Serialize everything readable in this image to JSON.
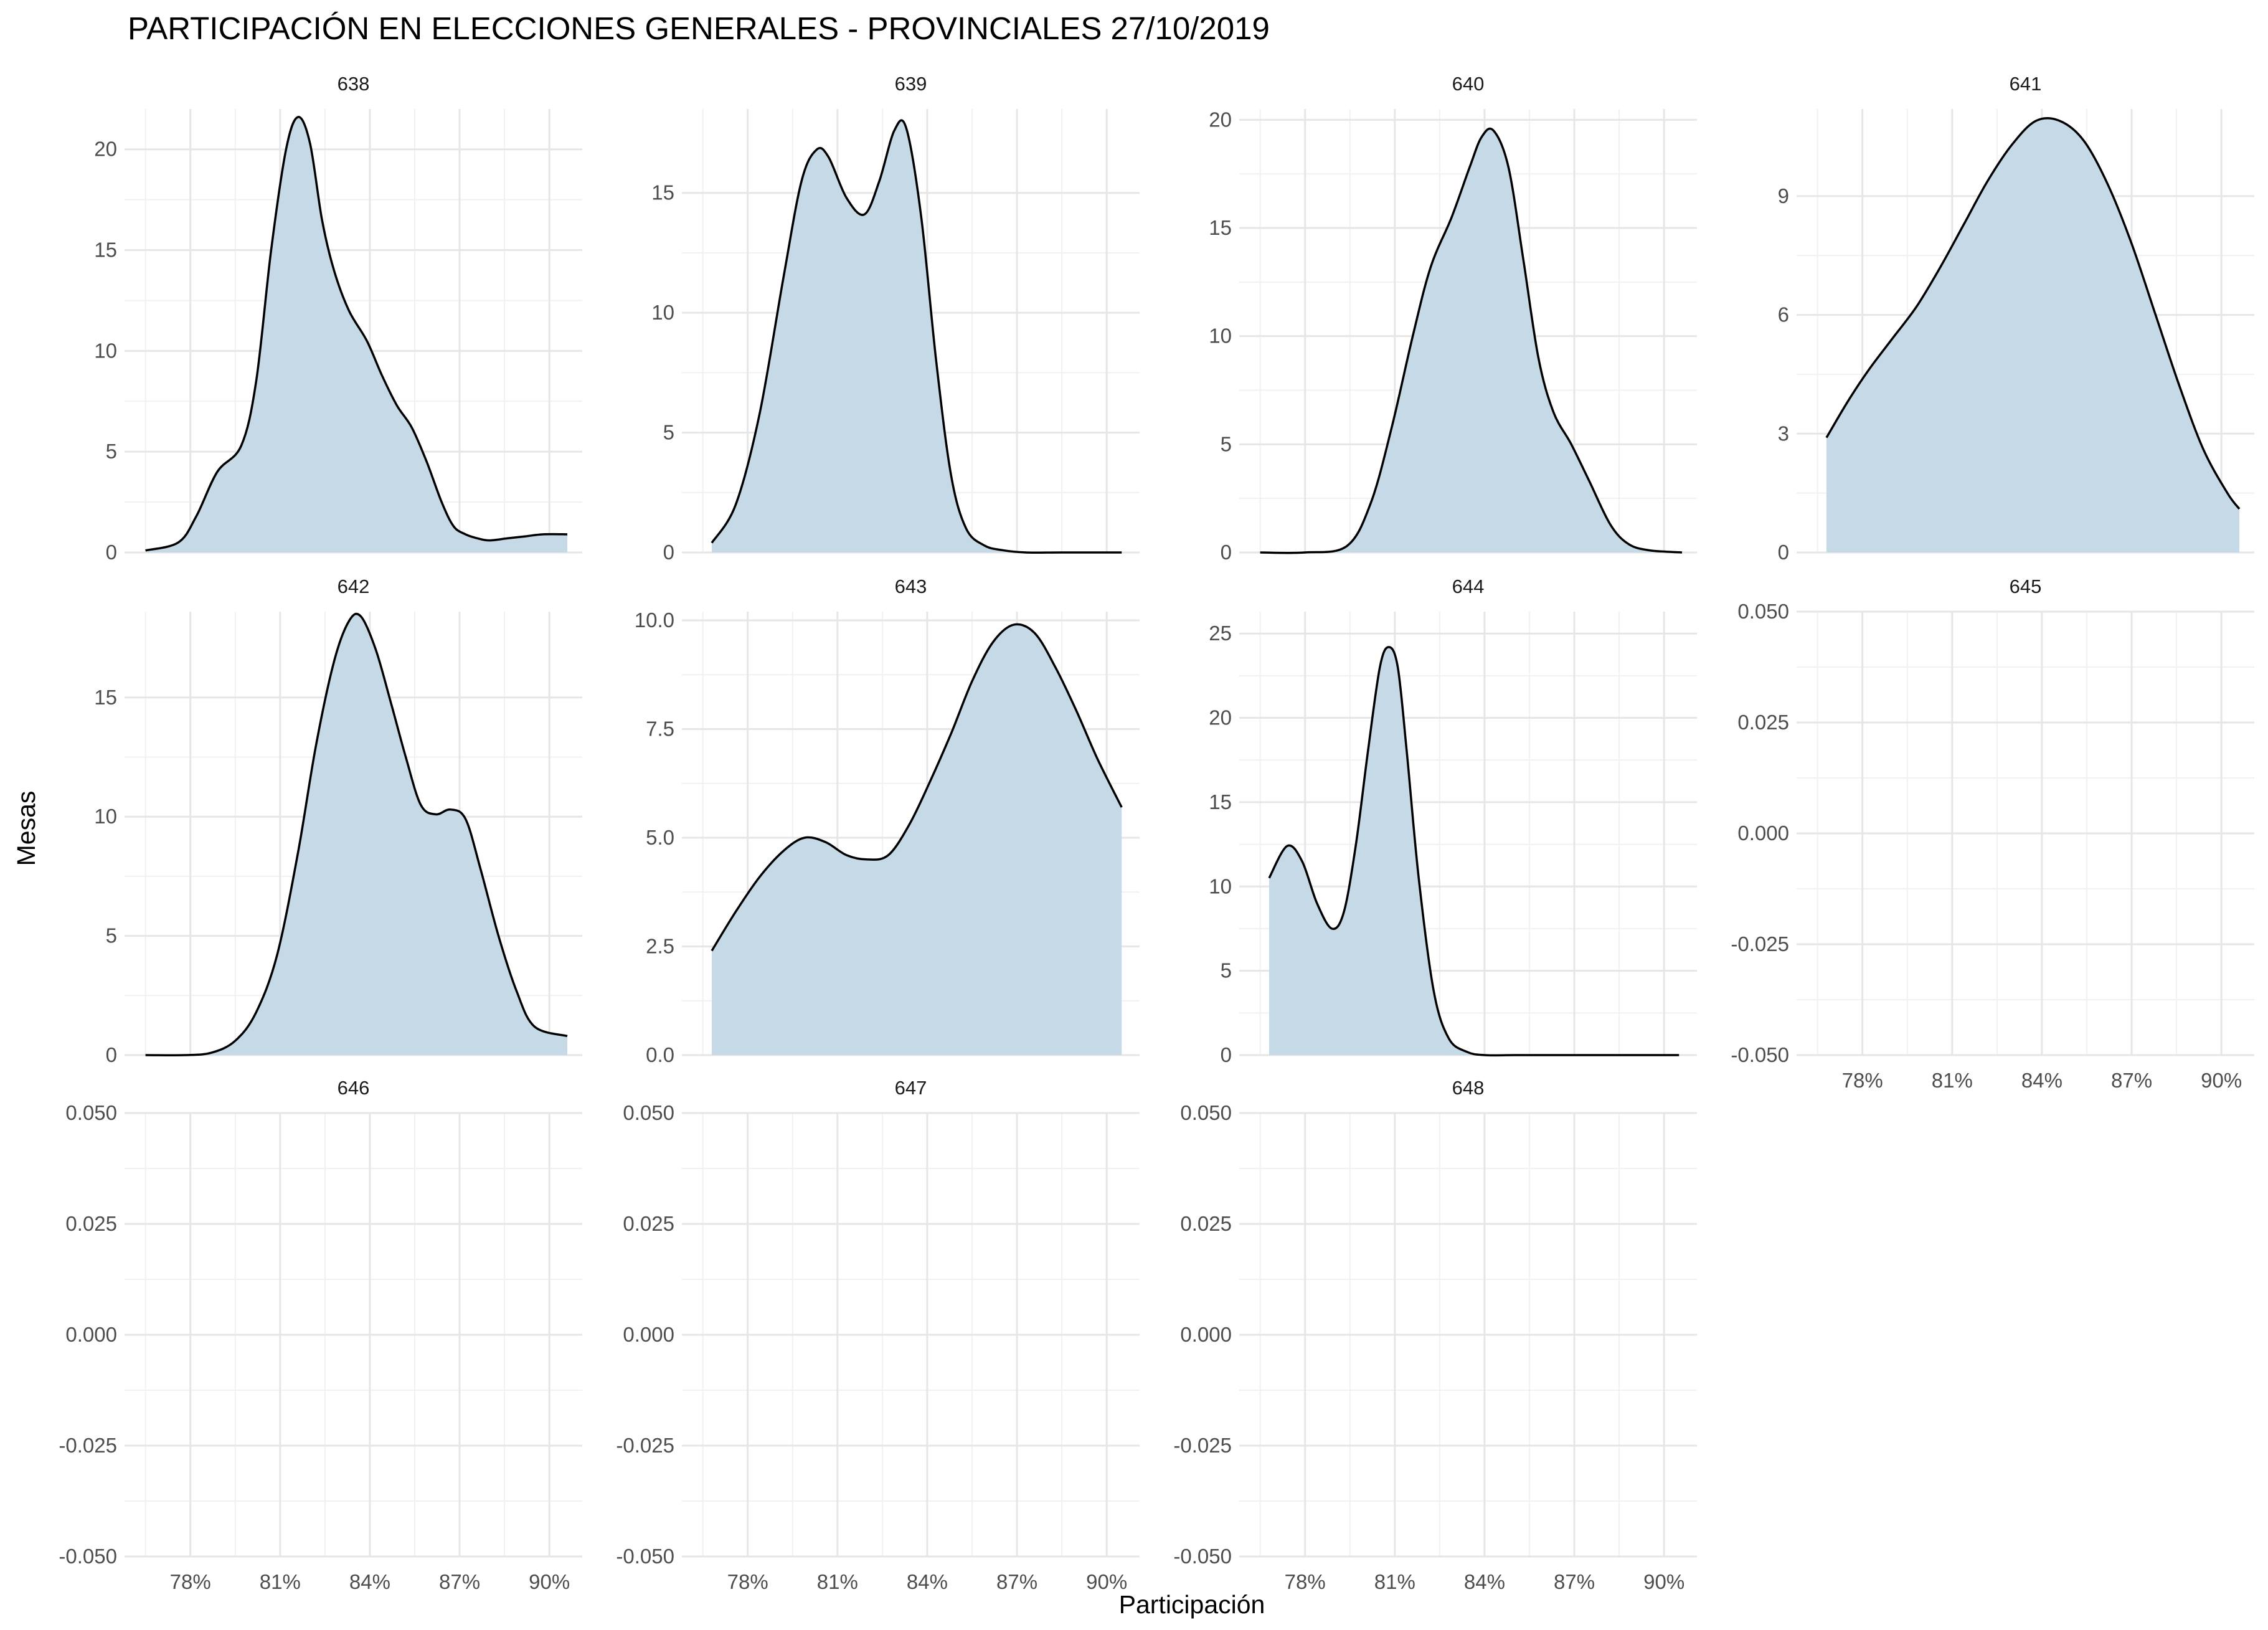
{
  "chart_data": {
    "type": "area",
    "title": "PARTICIPACIÓN EN ELECCIONES GENERALES - PROVINCIALES 27/10/2019",
    "xlabel": "Participación",
    "ylabel": "Mesas",
    "x_unit": "%",
    "xlim": [
      75.8,
      91.1
    ],
    "x_ticks": [
      78,
      81,
      84,
      87,
      90
    ],
    "x_tick_labels": [
      "78%",
      "81%",
      "84%",
      "87%",
      "90%"
    ],
    "grid": true,
    "layout": "facet wrap, 4 columns, free y scales",
    "fill_color": "#c6d9e6",
    "line_color": "#000000",
    "facets": [
      {
        "label": "638",
        "y_ticks": [
          0,
          5,
          10,
          15,
          20
        ],
        "y_tick_labels": [
          "0",
          "5",
          "10",
          "15",
          "20"
        ],
        "ylim": [
          0,
          22
        ],
        "x": [
          76.5,
          77.6,
          78.2,
          78.9,
          79.7,
          80.2,
          80.7,
          81.2,
          81.6,
          82.0,
          82.4,
          82.8,
          83.3,
          83.9,
          84.4,
          84.9,
          85.4,
          85.9,
          86.4,
          86.8,
          87.2,
          87.6,
          88.0,
          88.6,
          89.2,
          89.8,
          90.6
        ],
        "y": [
          0.1,
          0.5,
          1.8,
          4.0,
          5.3,
          8.5,
          15.0,
          20.0,
          21.6,
          20.3,
          16.5,
          14.0,
          12.0,
          10.5,
          8.8,
          7.3,
          6.2,
          4.5,
          2.5,
          1.3,
          0.9,
          0.7,
          0.6,
          0.7,
          0.8,
          0.9,
          0.9
        ]
      },
      {
        "label": "639",
        "y_ticks": [
          0,
          5,
          10,
          15
        ],
        "y_tick_labels": [
          "0",
          "5",
          "10",
          "15"
        ],
        "ylim": [
          0,
          18.5
        ],
        "x": [
          76.8,
          77.6,
          78.4,
          79.2,
          79.8,
          80.3,
          80.7,
          81.3,
          81.9,
          82.4,
          82.9,
          83.3,
          83.8,
          84.3,
          84.8,
          85.3,
          85.9,
          86.5,
          87.3,
          88.5,
          90.5
        ],
        "y": [
          0.4,
          2.0,
          5.8,
          11.5,
          15.5,
          16.8,
          16.5,
          14.8,
          14.1,
          15.5,
          17.6,
          17.7,
          14.0,
          8.0,
          3.2,
          1.0,
          0.3,
          0.1,
          0.0,
          0.0,
          0.0
        ]
      },
      {
        "label": "640",
        "y_ticks": [
          0,
          5,
          10,
          15,
          20
        ],
        "y_tick_labels": [
          "0",
          "5",
          "10",
          "15",
          "20"
        ],
        "ylim": [
          0,
          20.5
        ],
        "x": [
          76.5,
          78.0,
          79.4,
          80.2,
          80.9,
          81.6,
          82.2,
          82.9,
          83.5,
          83.9,
          84.3,
          84.8,
          85.3,
          85.8,
          86.3,
          86.9,
          87.5,
          88.2,
          88.8,
          89.5,
          90.6
        ],
        "y": [
          0.0,
          0.0,
          0.3,
          2.3,
          5.8,
          10.0,
          13.2,
          15.5,
          17.8,
          19.2,
          19.5,
          17.8,
          13.5,
          9.0,
          6.5,
          5.0,
          3.3,
          1.3,
          0.4,
          0.1,
          0.0
        ]
      },
      {
        "label": "641",
        "y_ticks": [
          0,
          3,
          6,
          9
        ],
        "y_tick_labels": [
          "0",
          "3",
          "6",
          "9"
        ],
        "ylim": [
          0,
          11.2
        ],
        "x": [
          76.8,
          77.5,
          78.2,
          79.0,
          79.8,
          80.6,
          81.4,
          82.2,
          83.0,
          83.8,
          84.6,
          85.4,
          86.2,
          87.0,
          87.8,
          88.6,
          89.4,
          90.2,
          90.6
        ],
        "y": [
          2.9,
          3.8,
          4.6,
          5.4,
          6.2,
          7.2,
          8.3,
          9.4,
          10.3,
          10.9,
          10.9,
          10.4,
          9.3,
          7.8,
          6.0,
          4.2,
          2.6,
          1.5,
          1.1
        ]
      },
      {
        "label": "642",
        "y_ticks": [
          0,
          5,
          10,
          15
        ],
        "y_tick_labels": [
          "0",
          "5",
          "10",
          "15"
        ],
        "ylim": [
          0,
          18.6
        ],
        "x": [
          76.5,
          77.8,
          78.7,
          79.5,
          80.2,
          80.9,
          81.6,
          82.2,
          82.8,
          83.3,
          83.7,
          84.2,
          84.7,
          85.2,
          85.7,
          86.2,
          86.7,
          87.2,
          87.7,
          88.3,
          88.9,
          89.5,
          90.6
        ],
        "y": [
          0.0,
          0.0,
          0.1,
          0.6,
          1.8,
          4.2,
          8.5,
          13.0,
          16.5,
          18.2,
          18.4,
          17.0,
          14.8,
          12.5,
          10.5,
          10.1,
          10.3,
          9.9,
          7.8,
          5.0,
          2.7,
          1.2,
          0.8
        ]
      },
      {
        "label": "643",
        "y_ticks": [
          0,
          2.5,
          5,
          7.5,
          10
        ],
        "y_tick_labels": [
          "0.0",
          "2.5",
          "5.0",
          "7.5",
          "10.0"
        ],
        "ylim": [
          0,
          10.2
        ],
        "x": [
          76.8,
          77.6,
          78.4,
          79.2,
          79.9,
          80.6,
          81.3,
          82.0,
          82.7,
          83.4,
          84.1,
          84.8,
          85.5,
          86.2,
          86.9,
          87.6,
          88.3,
          89.0,
          89.7,
          90.5
        ],
        "y": [
          2.4,
          3.3,
          4.1,
          4.7,
          5.0,
          4.9,
          4.6,
          4.5,
          4.6,
          5.3,
          6.3,
          7.4,
          8.6,
          9.5,
          9.9,
          9.7,
          8.9,
          7.9,
          6.8,
          5.7
        ]
      },
      {
        "label": "644",
        "y_ticks": [
          0,
          5,
          10,
          15,
          20,
          25
        ],
        "y_tick_labels": [
          "0",
          "5",
          "10",
          "15",
          "20",
          "25"
        ],
        "ylim": [
          0,
          26.3
        ],
        "x": [
          76.8,
          77.4,
          77.9,
          78.4,
          78.9,
          79.3,
          79.7,
          80.1,
          80.5,
          80.8,
          81.1,
          81.4,
          81.8,
          82.3,
          82.8,
          83.4,
          84.0,
          85.0,
          86.5,
          88.5,
          90.5
        ],
        "y": [
          10.5,
          12.4,
          11.5,
          9.0,
          7.5,
          8.5,
          12.5,
          18.0,
          23.0,
          24.2,
          23.0,
          18.0,
          10.5,
          3.8,
          1.0,
          0.2,
          0.0,
          0.0,
          0.0,
          0.0,
          0.0
        ]
      },
      {
        "label": "645",
        "y_ticks": [
          -0.05,
          -0.025,
          0,
          0.025,
          0.05
        ],
        "y_tick_labels": [
          "-0.050",
          "-0.025",
          "0.000",
          "0.025",
          "0.050"
        ],
        "ylim": [
          -0.05,
          0.05
        ],
        "x": [],
        "y": []
      },
      {
        "label": "646",
        "y_ticks": [
          -0.05,
          -0.025,
          0,
          0.025,
          0.05
        ],
        "y_tick_labels": [
          "-0.050",
          "-0.025",
          "0.000",
          "0.025",
          "0.050"
        ],
        "ylim": [
          -0.05,
          0.05
        ],
        "x": [],
        "y": []
      },
      {
        "label": "647",
        "y_ticks": [
          -0.05,
          -0.025,
          0,
          0.025,
          0.05
        ],
        "y_tick_labels": [
          "-0.050",
          "-0.025",
          "0.000",
          "0.025",
          "0.050"
        ],
        "ylim": [
          -0.05,
          0.05
        ],
        "x": [],
        "y": []
      },
      {
        "label": "648",
        "y_ticks": [
          -0.05,
          -0.025,
          0,
          0.025,
          0.05
        ],
        "y_tick_labels": [
          "-0.050",
          "-0.025",
          "0.000",
          "0.025",
          "0.050"
        ],
        "ylim": [
          -0.05,
          0.05
        ],
        "x": [],
        "y": []
      }
    ]
  }
}
